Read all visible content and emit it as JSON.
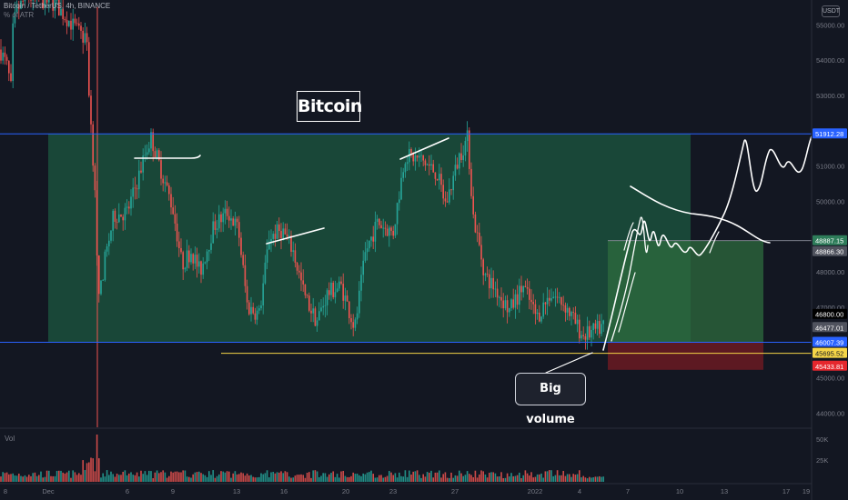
{
  "header": {
    "symbol": "Bitcoin / TetherUS, 4h, BINANCE",
    "indicator": "% of ATR",
    "volume_label": "Vol",
    "currency": "USDT"
  },
  "annotations": {
    "title": "Bitcoin",
    "callout": "Big volume"
  },
  "colors": {
    "background": "#131722",
    "up": "#26a69a",
    "down": "#ef5350",
    "range_fill": "#1f6f4a",
    "target_fill": "#2e6b3e",
    "stop_fill": "#6b1a22",
    "range_line": "#2962ff",
    "support_line": "#f5d547",
    "drawing": "#ffffff"
  },
  "chart_data": {
    "type": "candlestick",
    "title": "",
    "xlabel": "",
    "ylabel": "",
    "y_axis": {
      "ticks": [
        "55000.00",
        "54000.00",
        "53000.00",
        "51000.00",
        "50000.00",
        "48000.00",
        "47000.00",
        "45000.00",
        "44000.00"
      ],
      "ylim": [
        43600,
        55700
      ]
    },
    "x_axis": {
      "ticks": [
        "8",
        "Dec",
        "6",
        "9",
        "13",
        "16",
        "20",
        "23",
        "27",
        "2022",
        "4",
        "7",
        "10",
        "13",
        "17",
        "19"
      ]
    },
    "price_labels": [
      {
        "value": "51912.28",
        "style": "blue"
      },
      {
        "value": "48887.15",
        "style": "green"
      },
      {
        "value": "48866.30",
        "style": "gray"
      },
      {
        "value": "46800.00",
        "style": "black"
      },
      {
        "value": "46477.01",
        "style": "gray"
      },
      {
        "value": "46007.39",
        "style": "blue"
      },
      {
        "value": "45695.52",
        "style": "yellow"
      },
      {
        "value": "45433.81",
        "style": "red"
      }
    ],
    "levels": {
      "range_top": 51912.28,
      "range_bottom": 46007.39,
      "support": 45695.52,
      "entry": 46477.01,
      "target": 48887.15,
      "stop": 45433.81
    },
    "volume_axis": {
      "ticks": [
        "50K",
        "25K"
      ]
    },
    "series_seed": 7
  }
}
